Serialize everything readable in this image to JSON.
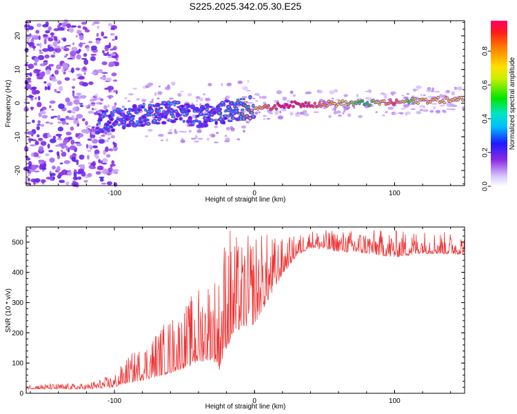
{
  "chart_data": [
    {
      "type": "heatmap",
      "title": "S225.2025.342.05.30.E25",
      "xlabel": "Height of straight line (km)",
      "ylabel": "Frequency (Hz)",
      "xlim": [
        -163,
        150
      ],
      "ylim": [
        -24.5,
        24.5
      ],
      "xticks": [
        -100,
        0,
        100
      ],
      "xtick_labels": [
        "-100",
        "0",
        "100"
      ],
      "yticks": [
        -20,
        -10,
        0,
        10,
        20
      ],
      "ytick_labels": [
        "-20",
        "-10",
        "0",
        "10",
        "20"
      ],
      "ridge": {
        "x": [
          -110,
          -100,
          -90,
          -80,
          -70,
          -60,
          -50,
          -40,
          -30,
          -20,
          -10,
          0,
          10,
          20,
          40,
          60,
          80,
          100,
          110,
          120,
          150
        ],
        "freq": [
          -5.5,
          -5.0,
          -4.0,
          -3.5,
          -3.0,
          -2.5,
          -3.0,
          -4.0,
          -3.0,
          -2.5,
          -2.0,
          -1.0,
          -1.5,
          -0.5,
          -0.3,
          -0.1,
          0.0,
          0.2,
          0.5,
          0.8,
          1.0
        ],
        "amplitude": [
          0.35,
          0.35,
          0.4,
          0.4,
          0.4,
          0.4,
          0.35,
          0.35,
          0.4,
          0.45,
          0.55,
          0.7,
          0.85,
          0.95,
          0.9,
          0.7,
          0.5,
          0.9,
          0.55,
          0.75,
          0.7
        ]
      },
      "colorbar": {
        "label": "Normalized spectral amplitude",
        "range": [
          0.0,
          0.98
        ],
        "ticks": [
          0.0,
          0.2,
          0.4,
          0.6,
          0.8
        ],
        "tick_labels": [
          "0.0",
          "0.2",
          "0.4",
          "0.6",
          "0.8"
        ]
      }
    },
    {
      "type": "line",
      "xlabel": "Height of straight line (km)",
      "ylabel": "SNR (10 * v/v)",
      "xlim": [
        -163,
        150
      ],
      "ylim": [
        0,
        550
      ],
      "xticks": [
        -100,
        0,
        100
      ],
      "xtick_labels": [
        "-100",
        "0",
        "100"
      ],
      "yticks": [
        0,
        100,
        200,
        300,
        400,
        500
      ],
      "ytick_labels": [
        "0",
        "100",
        "200",
        "300",
        "400",
        "500"
      ],
      "series": [
        {
          "name": "SNR",
          "color": "#ee3333",
          "envelope": {
            "x": [
              -163,
              -120,
              -100,
              -90,
              -80,
              -70,
              -60,
              -50,
              -40,
              -30,
              -25,
              -20,
              -10,
              0,
              10,
              20,
              30,
              40,
              60,
              80,
              100,
              120,
              150
            ],
            "mean": [
              18,
              18,
              30,
              55,
              70,
              90,
              110,
              130,
              160,
              180,
              150,
              250,
              280,
              300,
              360,
              420,
              470,
              495,
              485,
              480,
              470,
              480,
              475
            ],
            "spread": [
              8,
              10,
              22,
              45,
              60,
              80,
              95,
              105,
              130,
              150,
              160,
              220,
              140,
              160,
              110,
              60,
              35,
              30,
              35,
              40,
              45,
              40,
              35
            ]
          }
        }
      ]
    }
  ]
}
